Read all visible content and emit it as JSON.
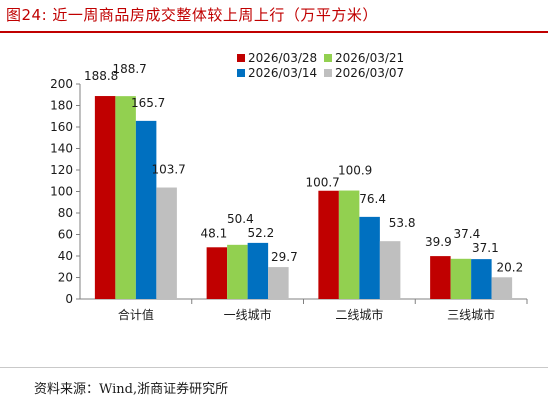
{
  "figure": {
    "title": "图24:   近一周商品房成交整体较上周上行（万平方米）",
    "source": "资料来源：Wind,浙商证券研究所"
  },
  "chart_data": {
    "type": "bar",
    "categories": [
      "合计值",
      "一线城市",
      "二线城市",
      "三线城市"
    ],
    "series": [
      {
        "name": "2026/03/28",
        "color": "#c00000",
        "values": [
          188.8,
          48.1,
          100.7,
          39.9
        ]
      },
      {
        "name": "2026/03/21",
        "color": "#92d050",
        "values": [
          188.7,
          50.4,
          100.9,
          37.4
        ]
      },
      {
        "name": "2026/03/14",
        "color": "#0070c0",
        "values": [
          165.7,
          52.2,
          76.4,
          37.1
        ]
      },
      {
        "name": "2026/03/07",
        "color": "#bfbfbf",
        "values": [
          103.7,
          29.7,
          53.8,
          20.2
        ]
      }
    ],
    "data_labels": [
      [
        "188.8",
        "48.1",
        "100.7",
        "39.9"
      ],
      [
        "188.7",
        "50.4",
        "100.9",
        "37.4"
      ],
      [
        "165.7",
        "52.2",
        "76.4",
        "37.1"
      ],
      [
        "103.7",
        "29.7",
        "53.8",
        "20.2"
      ]
    ],
    "ylim": [
      0,
      200
    ],
    "yticks": [
      "0",
      "20",
      "40",
      "60",
      "80",
      "100",
      "120",
      "140",
      "160",
      "180",
      "200"
    ],
    "grid": false,
    "legend": "top-right"
  }
}
